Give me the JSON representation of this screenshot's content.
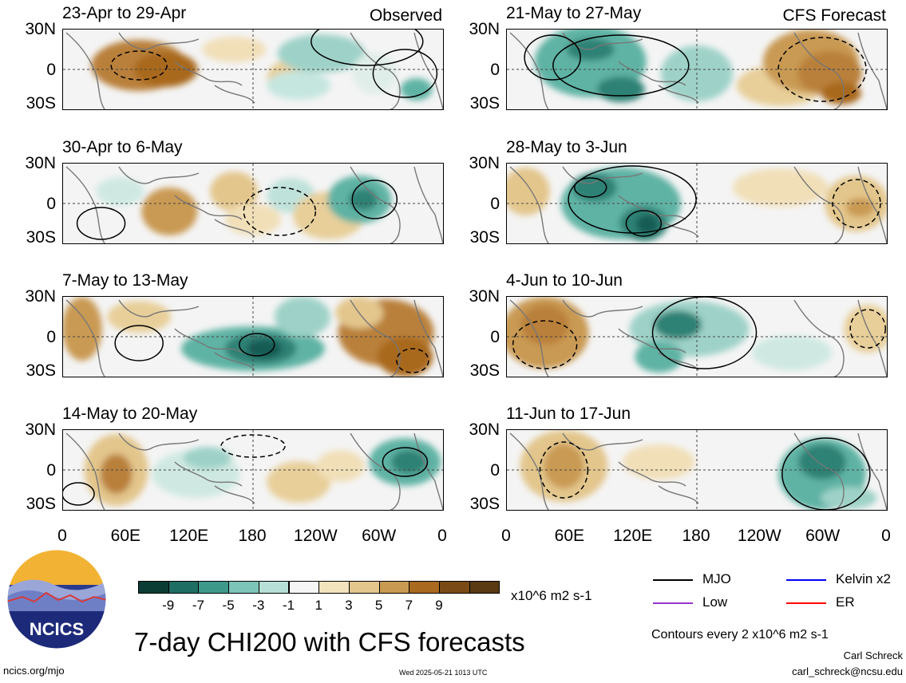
{
  "panels": [
    {
      "title": "23-Apr to 29-Apr",
      "tag": "Observed",
      "col": 0,
      "row": 0,
      "blobs": [
        [
          0.2,
          0.45,
          60,
          32,
          "#b9803a"
        ],
        [
          0.27,
          0.5,
          40,
          22,
          "#a9691f"
        ],
        [
          0.45,
          0.25,
          40,
          16,
          "#f1dfb8"
        ],
        [
          0.6,
          0.6,
          30,
          22,
          "#e8cf9a"
        ],
        [
          0.68,
          0.3,
          55,
          24,
          "#9ed2c8"
        ],
        [
          0.62,
          0.7,
          40,
          18,
          "#c5e6df"
        ],
        [
          0.82,
          0.55,
          28,
          26,
          "#e0eee9"
        ],
        [
          0.93,
          0.75,
          20,
          14,
          "#5fb3a4"
        ]
      ],
      "contours": [
        [
          0.8,
          0.15,
          70,
          30,
          "solid"
        ],
        [
          0.2,
          0.45,
          35,
          18,
          "dashed"
        ],
        [
          0.9,
          0.55,
          40,
          30,
          "solid"
        ]
      ]
    },
    {
      "title": "30-Apr to 6-May",
      "tag": "",
      "col": 0,
      "row": 1,
      "blobs": [
        [
          0.28,
          0.6,
          35,
          30,
          "#c99a52"
        ],
        [
          0.45,
          0.35,
          30,
          25,
          "#e3c68c"
        ],
        [
          0.6,
          0.4,
          30,
          22,
          "#bfe2da"
        ],
        [
          0.7,
          0.65,
          45,
          30,
          "#e8cf9a"
        ],
        [
          0.78,
          0.45,
          40,
          30,
          "#5fb3a4"
        ],
        [
          0.79,
          0.45,
          18,
          14,
          "#2d8174"
        ],
        [
          0.15,
          0.35,
          30,
          18,
          "#cfe9e2"
        ],
        [
          0.5,
          0.7,
          35,
          20,
          "#f1dfb8"
        ]
      ],
      "contours": [
        [
          0.1,
          0.75,
          30,
          20,
          "solid"
        ],
        [
          0.57,
          0.6,
          45,
          30,
          "dashed"
        ],
        [
          0.82,
          0.45,
          28,
          24,
          "solid"
        ]
      ]
    },
    {
      "title": "7-May to 13-May",
      "tag": "",
      "col": 0,
      "row": 2,
      "blobs": [
        [
          0.05,
          0.4,
          25,
          40,
          "#c99a52"
        ],
        [
          0.2,
          0.25,
          40,
          20,
          "#e8cf9a"
        ],
        [
          0.5,
          0.65,
          90,
          28,
          "#5fb3a4"
        ],
        [
          0.52,
          0.65,
          45,
          20,
          "#2d8174"
        ],
        [
          0.53,
          0.65,
          22,
          12,
          "#145c54"
        ],
        [
          0.63,
          0.25,
          35,
          25,
          "#9ed2c8"
        ],
        [
          0.85,
          0.45,
          60,
          42,
          "#b9803a"
        ],
        [
          0.9,
          0.75,
          35,
          25,
          "#a9691f"
        ],
        [
          0.78,
          0.2,
          30,
          20,
          "#e3c68c"
        ]
      ],
      "contours": [
        [
          0.2,
          0.58,
          30,
          22,
          "solid"
        ],
        [
          0.51,
          0.6,
          22,
          14,
          "solid"
        ],
        [
          0.92,
          0.8,
          20,
          15,
          "dashed"
        ]
      ]
    },
    {
      "title": "14-May to 20-May",
      "tag": "",
      "col": 0,
      "row": 3,
      "blobs": [
        [
          0.14,
          0.5,
          40,
          45,
          "#e3c68c"
        ],
        [
          0.14,
          0.55,
          20,
          25,
          "#b9803a"
        ],
        [
          0.35,
          0.55,
          55,
          30,
          "#cfe9e2"
        ],
        [
          0.38,
          0.35,
          30,
          14,
          "#9ed2c8"
        ],
        [
          0.62,
          0.65,
          40,
          26,
          "#e8cf9a"
        ],
        [
          0.73,
          0.45,
          30,
          20,
          "#f1dfb8"
        ],
        [
          0.9,
          0.4,
          45,
          30,
          "#5fb3a4"
        ],
        [
          0.91,
          0.4,
          22,
          15,
          "#2d8174"
        ]
      ],
      "contours": [
        [
          0.9,
          0.4,
          28,
          18,
          "solid"
        ],
        [
          0.5,
          0.2,
          40,
          14,
          "dashed"
        ],
        [
          0.04,
          0.8,
          20,
          14,
          "solid"
        ]
      ]
    },
    {
      "title": "21-May to 27-May",
      "tag": "CFS Forecast",
      "col": 1,
      "row": 0,
      "blobs": [
        [
          0.22,
          0.4,
          70,
          45,
          "#5fb3a4"
        ],
        [
          0.3,
          0.75,
          30,
          16,
          "#2d8174"
        ],
        [
          0.22,
          0.25,
          30,
          14,
          "#2d8174"
        ],
        [
          0.5,
          0.55,
          45,
          35,
          "#9ed2c8"
        ],
        [
          0.72,
          0.7,
          55,
          26,
          "#e8cf9a"
        ],
        [
          0.8,
          0.4,
          60,
          40,
          "#c99a52"
        ],
        [
          0.85,
          0.55,
          40,
          28,
          "#b9803a"
        ],
        [
          0.88,
          0.8,
          25,
          14,
          "#a9691f"
        ]
      ],
      "contours": [
        [
          0.3,
          0.45,
          85,
          38,
          "solid"
        ],
        [
          0.12,
          0.35,
          35,
          28,
          "solid"
        ],
        [
          0.83,
          0.5,
          55,
          40,
          "dashed"
        ]
      ]
    },
    {
      "title": "28-May to 3-Jun",
      "tag": "",
      "col": 1,
      "row": 1,
      "blobs": [
        [
          0.05,
          0.35,
          30,
          30,
          "#e3c68c"
        ],
        [
          0.3,
          0.5,
          75,
          45,
          "#5fb3a4"
        ],
        [
          0.36,
          0.75,
          30,
          22,
          "#2d8174"
        ],
        [
          0.37,
          0.76,
          14,
          12,
          "#145c54"
        ],
        [
          0.23,
          0.3,
          28,
          18,
          "#2d8174"
        ],
        [
          0.72,
          0.3,
          60,
          24,
          "#f1dfb8"
        ],
        [
          0.92,
          0.5,
          40,
          35,
          "#e3c68c"
        ],
        [
          0.93,
          0.55,
          18,
          12,
          "#c99a52"
        ]
      ],
      "contours": [
        [
          0.33,
          0.45,
          80,
          42,
          "solid"
        ],
        [
          0.22,
          0.3,
          20,
          12,
          "solid"
        ],
        [
          0.36,
          0.75,
          22,
          16,
          "solid"
        ],
        [
          0.92,
          0.5,
          30,
          30,
          "dashed"
        ]
      ]
    },
    {
      "title": "4-Jun to 10-Jun",
      "tag": "",
      "col": 1,
      "row": 2,
      "blobs": [
        [
          0.1,
          0.45,
          55,
          45,
          "#c99a52"
        ],
        [
          0.1,
          0.35,
          30,
          25,
          "#b9803a"
        ],
        [
          0.48,
          0.4,
          75,
          35,
          "#9ed2c8"
        ],
        [
          0.45,
          0.35,
          30,
          18,
          "#2d8174"
        ],
        [
          0.4,
          0.75,
          30,
          20,
          "#5fb3a4"
        ],
        [
          0.95,
          0.4,
          30,
          30,
          "#e8cf9a"
        ],
        [
          0.75,
          0.7,
          50,
          22,
          "#cfe9e2"
        ]
      ],
      "contours": [
        [
          0.52,
          0.45,
          65,
          45,
          "solid"
        ],
        [
          0.95,
          0.4,
          22,
          24,
          "dashed"
        ],
        [
          0.1,
          0.6,
          40,
          30,
          "dashed"
        ]
      ]
    },
    {
      "title": "11-Jun to 17-Jun",
      "tag": "",
      "col": 1,
      "row": 3,
      "blobs": [
        [
          0.15,
          0.45,
          55,
          45,
          "#e3c68c"
        ],
        [
          0.15,
          0.45,
          25,
          28,
          "#c99a52"
        ],
        [
          0.4,
          0.4,
          45,
          22,
          "#f1dfb8"
        ],
        [
          0.83,
          0.55,
          55,
          45,
          "#5fb3a4"
        ],
        [
          0.83,
          0.4,
          30,
          22,
          "#2d8174"
        ],
        [
          0.9,
          0.85,
          35,
          14,
          "#9ed2c8"
        ]
      ],
      "contours": [
        [
          0.84,
          0.55,
          55,
          45,
          "solid"
        ],
        [
          0.15,
          0.5,
          30,
          35,
          "dashed"
        ]
      ]
    }
  ],
  "lat_labels": [
    "30N",
    "0",
    "30S"
  ],
  "lon_labels": [
    "0",
    "60E",
    "120E",
    "180",
    "120W",
    "60W",
    "0"
  ],
  "colorbar": {
    "colors": [
      "#0b3d35",
      "#1e6e63",
      "#3f998b",
      "#7cc5b8",
      "#b6e0d7",
      "#f5f5f5",
      "#f3e3bd",
      "#e3c68c",
      "#c99a52",
      "#a9691f",
      "#7a4a16",
      "#5a3a12"
    ],
    "labels": [
      "-9",
      "-7",
      "-5",
      "-3",
      "-1",
      "1",
      "3",
      "5",
      "7",
      "9"
    ],
    "units": "x10^6 m2 s-1"
  },
  "legend": [
    {
      "label": "MJO",
      "color": "#000000"
    },
    {
      "label": "Kelvin x2",
      "color": "#0000ff"
    },
    {
      "label": "Low",
      "color": "#9933cc"
    },
    {
      "label": "ER",
      "color": "#ff0000"
    }
  ],
  "contour_note": "Contours every 2 x10^6 m2 s-1",
  "main_title": "7-day CHI200 with CFS forecasts",
  "logo_text": "NCICS",
  "footer": {
    "left": "ncics.org/mjo",
    "center": "Wed 2025-05-21 1013 UTC",
    "author": "Carl Schreck",
    "email": "carl_schreck@ncsu.edu"
  },
  "chart_data": {
    "type": "heatmap",
    "title": "7-day CHI200 with CFS forecasts",
    "units": "x10^6 m2 s-1",
    "x_ticks": [
      "0",
      "60E",
      "120E",
      "180",
      "120W",
      "60W",
      "0"
    ],
    "y_ticks": [
      "30N",
      "0",
      "30S"
    ],
    "levels": [
      -9,
      -7,
      -5,
      -3,
      -1,
      1,
      3,
      5,
      7,
      9
    ],
    "periods_observed": [
      "23-Apr to 29-Apr",
      "30-Apr to 6-May",
      "7-May to 13-May",
      "14-May to 20-May"
    ],
    "periods_forecast": [
      "21-May to 27-May",
      "28-May to 3-Jun",
      "4-Jun to 10-Jun",
      "11-Jun to 17-Jun"
    ]
  }
}
